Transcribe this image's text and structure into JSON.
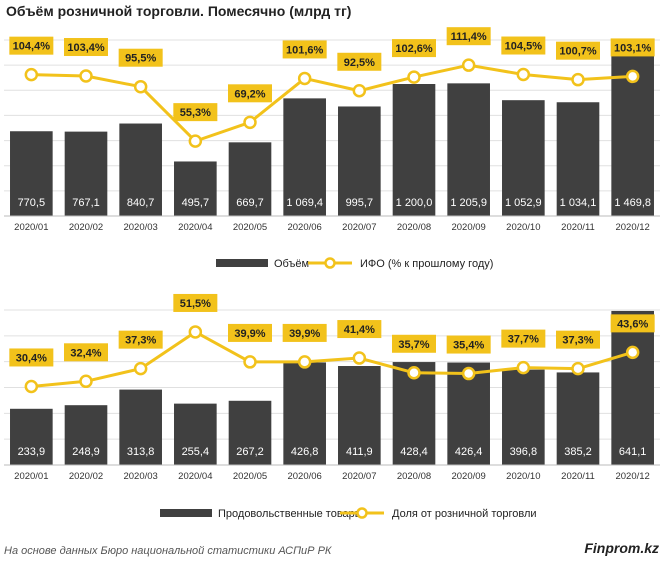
{
  "title": "Объём розничной торговли. Помесячно (млрд тг)",
  "footer": {
    "source": "На основе данных Бюро национальной статистики АСПиР РК",
    "brand": "Finprom.kz"
  },
  "colors": {
    "bar": "#404040",
    "line": "#f2c21b",
    "label_box": "#f2c21b",
    "grid": "#e0e0e0",
    "point_fill": "#ffffff"
  },
  "chart_data": [
    {
      "type": "bar",
      "categories": [
        "2020/01",
        "2020/02",
        "2020/03",
        "2020/04",
        "2020/05",
        "2020/06",
        "2020/07",
        "2020/08",
        "2020/09",
        "2020/10",
        "2020/11",
        "2020/12"
      ],
      "series": [
        {
          "name": "Объём",
          "type": "bar",
          "values": [
            770.5,
            767.1,
            840.7,
            495.7,
            669.7,
            1069.4,
            995.7,
            1200.0,
            1205.9,
            1052.9,
            1034.1,
            1469.8
          ],
          "labels": [
            "770,5",
            "767,1",
            "840,7",
            "495,7",
            "669,7",
            "1 069,4",
            "995,7",
            "1 200,0",
            "1 205,9",
            "1 052,9",
            "1 034,1",
            "1 469,8"
          ]
        },
        {
          "name": "ИФО (% к прошлому году)",
          "type": "line",
          "values": [
            104.4,
            103.4,
            95.5,
            55.3,
            69.2,
            101.6,
            92.5,
            102.6,
            111.4,
            104.5,
            100.7,
            103.1
          ],
          "labels": [
            "104,4%",
            "103,4%",
            "95,5%",
            "55,3%",
            "69,2%",
            "101,6%",
            "92,5%",
            "102,6%",
            "111,4%",
            "104,5%",
            "100,7%",
            "103,1%"
          ]
        }
      ],
      "bar_ylim": [
        0,
        1600
      ],
      "line_ylim": [
        0,
        130
      ],
      "grid": true,
      "legend": "bottom"
    },
    {
      "type": "bar",
      "categories": [
        "2020/01",
        "2020/02",
        "2020/03",
        "2020/04",
        "2020/05",
        "2020/06",
        "2020/07",
        "2020/08",
        "2020/09",
        "2020/10",
        "2020/11",
        "2020/12"
      ],
      "series": [
        {
          "name": "Продовольственные товары",
          "type": "bar",
          "values": [
            233.9,
            248.9,
            313.8,
            255.4,
            267.2,
            426.8,
            411.9,
            428.4,
            426.4,
            396.8,
            385.2,
            641.1
          ],
          "labels": [
            "233,9",
            "248,9",
            "313,8",
            "255,4",
            "267,2",
            "426,8",
            "411,9",
            "428,4",
            "426,4",
            "396,8",
            "385,2",
            "641,1"
          ]
        },
        {
          "name": "Доля от розничной торговли",
          "type": "line",
          "values": [
            30.4,
            32.4,
            37.3,
            51.5,
            39.9,
            39.9,
            41.4,
            35.7,
            35.4,
            37.7,
            37.3,
            43.6
          ],
          "labels": [
            "30,4%",
            "32,4%",
            "37,3%",
            "51,5%",
            "39,9%",
            "39,9%",
            "41,4%",
            "35,7%",
            "35,4%",
            "37,7%",
            "37,3%",
            "43,6%"
          ]
        }
      ],
      "bar_ylim": [
        0,
        645
      ],
      "line_ylim": [
        0,
        60
      ],
      "grid": true,
      "legend": "bottom"
    }
  ]
}
